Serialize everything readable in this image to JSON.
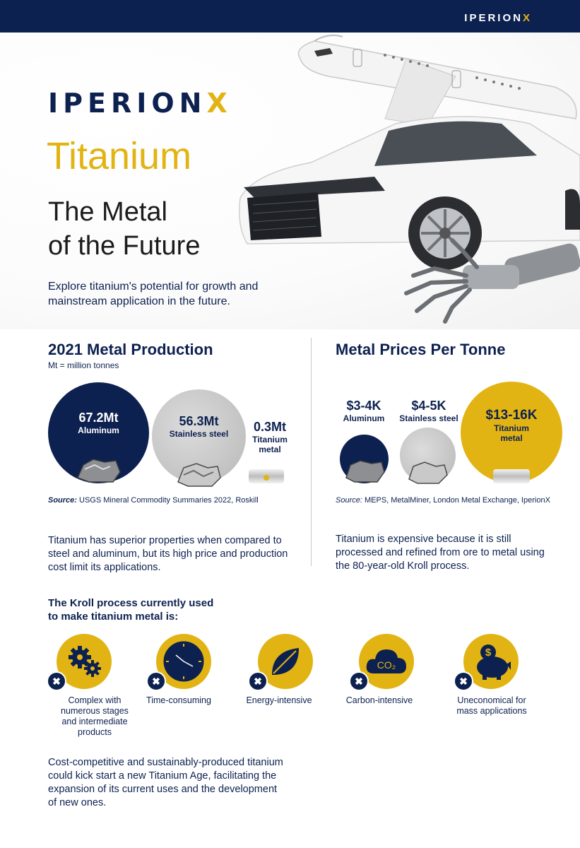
{
  "header": {
    "logo_main": "IPERION",
    "logo_x": "X"
  },
  "hero": {
    "title": "Titanium",
    "subtitle_line1": "The Metal",
    "subtitle_line2": "of the Future",
    "intro": "Explore titanium's potential for growth and mainstream application in the future."
  },
  "production": {
    "heading": "2021 Metal Production",
    "note": "Mt = million tonnes",
    "items": [
      {
        "value": "67.2Mt",
        "label": "Aluminum"
      },
      {
        "value": "56.3Mt",
        "label": "Stainless steel"
      },
      {
        "value": "0.3Mt",
        "label": "Titanium metal"
      }
    ],
    "source_label": "Source:",
    "source_text": "USGS Mineral Commodity Summaries 2022, Roskill",
    "body": "Titanium has superior properties when compared to steel and aluminum, but its high price and production cost limit its applications."
  },
  "prices": {
    "heading": "Metal Prices Per Tonne",
    "items": [
      {
        "value": "$3-4K",
        "label": "Aluminum"
      },
      {
        "value": "$4-5K",
        "label": "Stainless steel"
      },
      {
        "value": "$13-16K",
        "label": "Titanium metal"
      }
    ],
    "source_label": "Source:",
    "source_text": "MEPS, MetalMiner, London Metal Exchange, IperionX",
    "body": "Titanium is expensive because it is still processed and refined from ore to metal using the 80-year-old Kroll process."
  },
  "kroll": {
    "heading": "The Kroll process currently used to make titanium metal is:",
    "items": [
      {
        "icon": "gears-icon",
        "label": "Complex with numerous stages and intermediate products"
      },
      {
        "icon": "clock-icon",
        "label": "Time-consuming"
      },
      {
        "icon": "leaf-icon",
        "label": "Energy-intensive"
      },
      {
        "icon": "co2-cloud-icon",
        "label": "Carbon-intensive",
        "cloud_text": "CO₂"
      },
      {
        "icon": "piggy-bank-icon",
        "label": "Uneconomical for mass applications",
        "coin_text": "$"
      }
    ],
    "badge": "✖",
    "closing": "Cost-competitive and sustainably-produced titanium could kick start a new Titanium Age, facilitating the expansion of its current uses and the development of new ones."
  },
  "colors": {
    "navy": "#0d2150",
    "gold": "#e2b413",
    "grey": "#c4c4c4"
  }
}
